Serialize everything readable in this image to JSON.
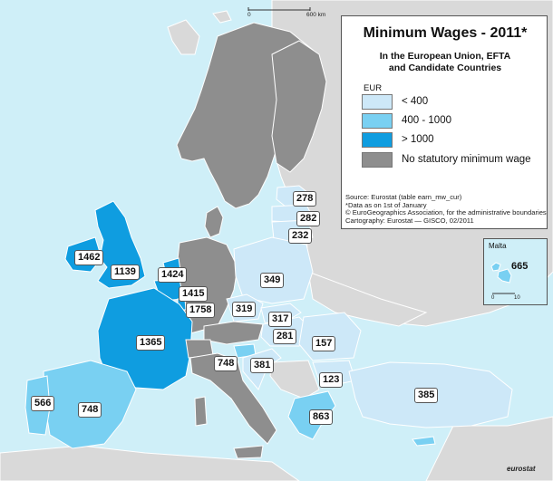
{
  "title": "Minimum Wages - 2011*",
  "subtitle_lines": [
    "In the European Union, EFTA",
    "and Candidate Countries"
  ],
  "legend": {
    "unit": "EUR",
    "items": [
      {
        "label": "< 400",
        "color": "#cde8f8"
      },
      {
        "label": "400 -  1000",
        "color": "#79d0f2"
      },
      {
        "label": "> 1000",
        "color": "#0f9de0"
      },
      {
        "label": "No statutory minimum wage",
        "color": "#8e8e8e"
      }
    ]
  },
  "notes": [
    "Source: Eurostat (table earn_mw_cur)",
    "*Data as on 1st of January",
    "© EuroGeographics Association, for the administrative boundaries",
    "Cartography: Eurostat — GISCO, 02/2011"
  ],
  "scale_bar": {
    "zero": "0",
    "end": "600 km"
  },
  "inset": {
    "name": "Malta",
    "value": "665",
    "scale_zero": "0",
    "scale_ten": "10"
  },
  "logo": "eurostat",
  "colors": {
    "sea": "#cfeff8",
    "non_covered_land": "#d9d9d9",
    "border": "#ffffff"
  },
  "value_labels": [
    {
      "country": "Estonia",
      "value": "278"
    },
    {
      "country": "Latvia",
      "value": "282"
    },
    {
      "country": "Lithuania",
      "value": "232"
    },
    {
      "country": "Ireland",
      "value": "1462"
    },
    {
      "country": "United Kingdom",
      "value": "1139"
    },
    {
      "country": "Netherlands",
      "value": "1424"
    },
    {
      "country": "Belgium",
      "value": "1415"
    },
    {
      "country": "Luxembourg",
      "value": "1758"
    },
    {
      "country": "Poland",
      "value": "349"
    },
    {
      "country": "Czech Republic",
      "value": "319"
    },
    {
      "country": "Slovakia",
      "value": "317"
    },
    {
      "country": "Hungary",
      "value": "281"
    },
    {
      "country": "Romania",
      "value": "157"
    },
    {
      "country": "France",
      "value": "1365"
    },
    {
      "country": "Slovenia",
      "value": "748"
    },
    {
      "country": "Croatia",
      "value": "381"
    },
    {
      "country": "Bulgaria",
      "value": "123"
    },
    {
      "country": "Turkey",
      "value": "385"
    },
    {
      "country": "Portugal",
      "value": "566"
    },
    {
      "country": "Spain",
      "value": "748"
    },
    {
      "country": "Greece",
      "value": "863"
    }
  ]
}
